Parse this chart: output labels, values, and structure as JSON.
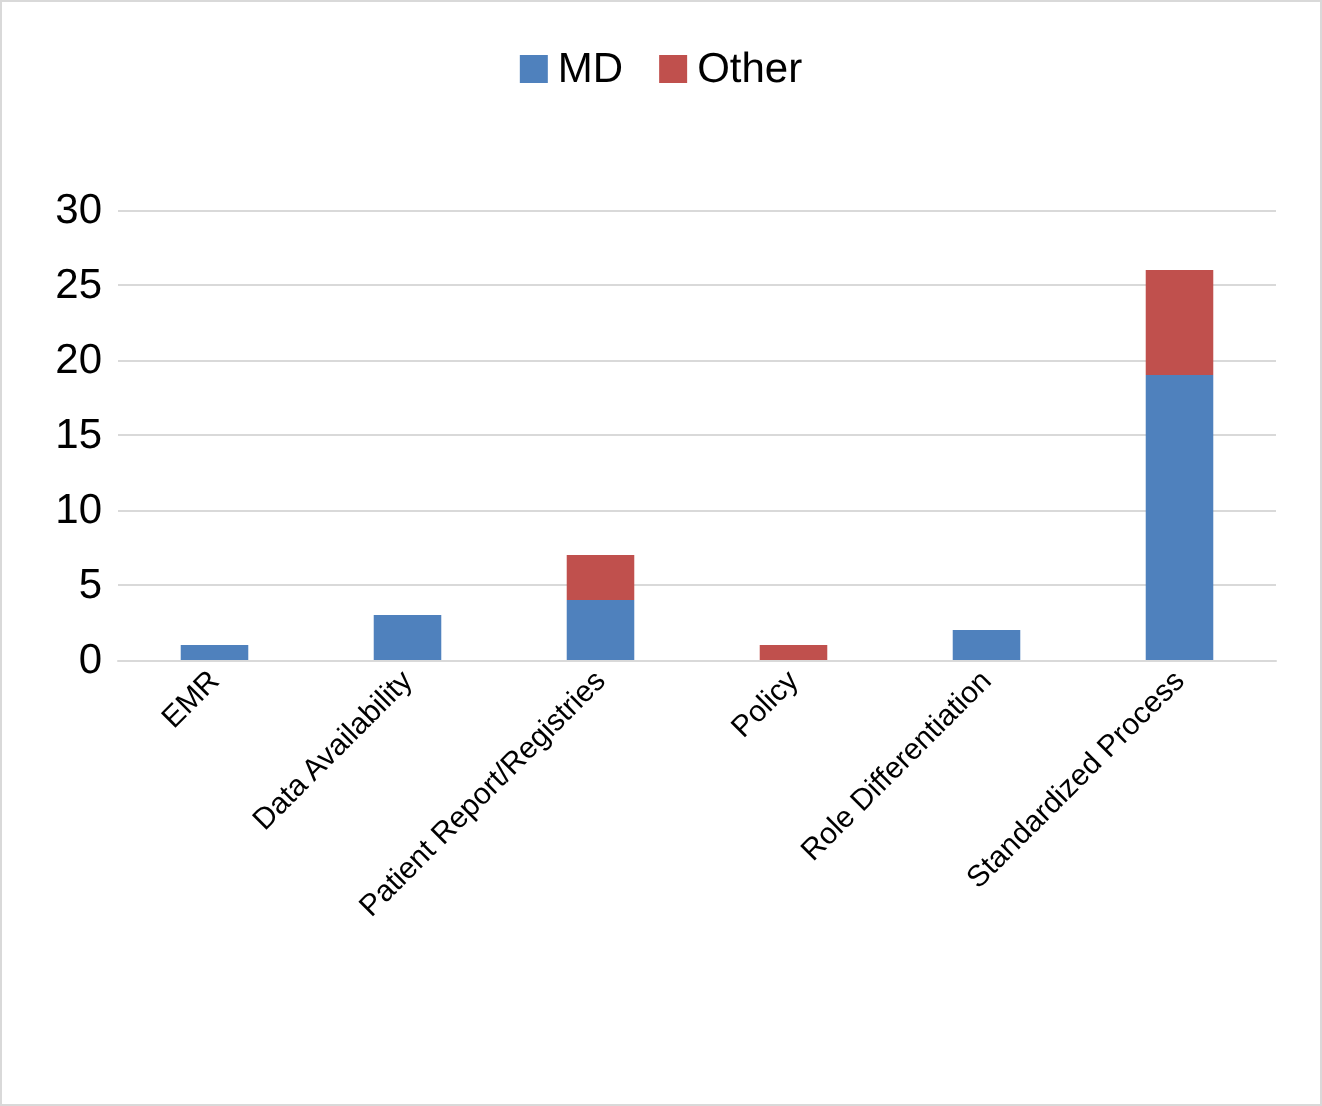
{
  "chart_data": {
    "type": "bar",
    "stacked": true,
    "categories": [
      "EMR",
      "Data Availability",
      "Patient Report/Registries",
      "Policy",
      "Role Differentiation",
      "Standardized Process"
    ],
    "series": [
      {
        "name": "MD",
        "color": "#4f81bd",
        "values": [
          1,
          3,
          4,
          0,
          2,
          19
        ]
      },
      {
        "name": "Other",
        "color": "#c0504d",
        "values": [
          0,
          0,
          3,
          1,
          0,
          7
        ]
      }
    ],
    "ylim": [
      0,
      30
    ],
    "yticks": [
      0,
      5,
      10,
      15,
      20,
      25,
      30
    ],
    "grid": "y",
    "legend": "top"
  }
}
